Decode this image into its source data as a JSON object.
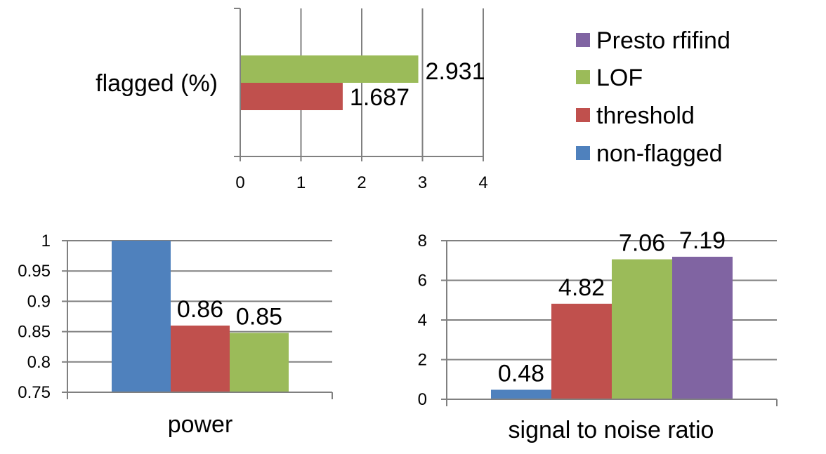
{
  "colors": {
    "Presto rfifind": "#8064A2",
    "LOF": "#9BBB59",
    "threshold": "#C0504D",
    "non-flagged": "#4F81BD",
    "grid": "#808080",
    "axis": "#808080"
  },
  "legend": {
    "placement": "top-right",
    "items": [
      {
        "label": "Presto rfifind",
        "color": "#8064A2"
      },
      {
        "label": "LOF",
        "color": "#9BBB59"
      },
      {
        "label": "threshold",
        "color": "#C0504D"
      },
      {
        "label": "non-flagged",
        "color": "#4F81BD"
      }
    ]
  },
  "chart_data": [
    {
      "type": "bar",
      "orientation": "horizontal",
      "category_label": "flagged (%)",
      "xlim": [
        0,
        4
      ],
      "x_ticks": [
        "0",
        "1",
        "2",
        "3",
        "4"
      ],
      "grid": true,
      "series": [
        {
          "name": "LOF",
          "value": 2.931,
          "label": "2.931",
          "color": "#9BBB59"
        },
        {
          "name": "threshold",
          "value": 1.687,
          "label": "1.687",
          "color": "#C0504D"
        }
      ]
    },
    {
      "type": "bar",
      "orientation": "vertical",
      "xlabel": "power",
      "ylim": [
        0.75,
        1
      ],
      "y_ticks": [
        "1",
        "0.95",
        "0.9",
        "0.85",
        "0.8",
        "0.75"
      ],
      "grid": true,
      "series": [
        {
          "name": "non-flagged",
          "value": 1.0,
          "label": "",
          "color": "#4F81BD"
        },
        {
          "name": "threshold",
          "value": 0.86,
          "label": "0.86",
          "color": "#C0504D"
        },
        {
          "name": "LOF",
          "value": 0.848,
          "label": "0.85",
          "color": "#9BBB59"
        }
      ]
    },
    {
      "type": "bar",
      "orientation": "vertical",
      "xlabel": "signal to noise ratio",
      "ylim": [
        0,
        8
      ],
      "y_ticks": [
        "8",
        "6",
        "4",
        "2",
        "0"
      ],
      "grid": true,
      "series": [
        {
          "name": "non-flagged",
          "value": 0.48,
          "label": "0.48",
          "color": "#4F81BD"
        },
        {
          "name": "threshold",
          "value": 4.82,
          "label": "4.82",
          "color": "#C0504D"
        },
        {
          "name": "LOF",
          "value": 7.06,
          "label": "7.06",
          "color": "#9BBB59"
        },
        {
          "name": "Presto rfifind",
          "value": 7.19,
          "label": "7.19",
          "color": "#8064A2"
        }
      ]
    }
  ]
}
